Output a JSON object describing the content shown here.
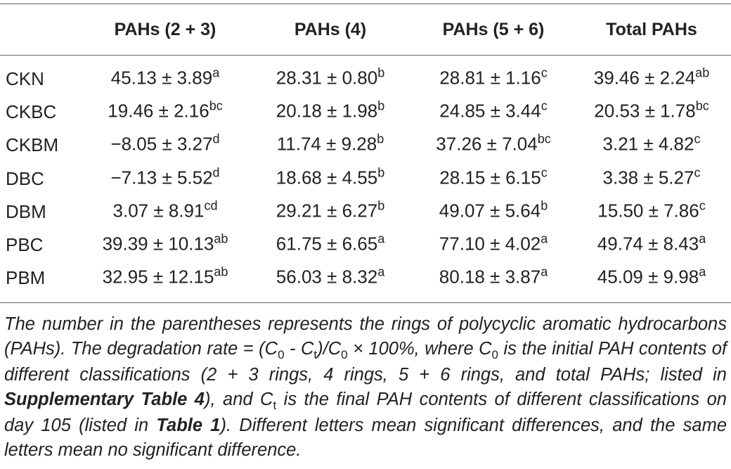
{
  "table": {
    "header": [
      "PAHs (2 + 3)",
      "PAHs (4)",
      "PAHs (5 + 6)",
      "Total PAHs"
    ],
    "rows": [
      {
        "label": "CKN",
        "cells": [
          {
            "value": "45.13 ± 3.89",
            "sup": "a"
          },
          {
            "value": "28.31 ± 0.80",
            "sup": "b"
          },
          {
            "value": "28.81 ± 1.16",
            "sup": "c"
          },
          {
            "value": "39.46 ± 2.24",
            "sup": "ab"
          }
        ]
      },
      {
        "label": "CKBC",
        "cells": [
          {
            "value": "19.46 ± 2.16",
            "sup": "bc"
          },
          {
            "value": "20.18 ± 1.98",
            "sup": "b"
          },
          {
            "value": "24.85 ± 3.44",
            "sup": "c"
          },
          {
            "value": "20.53 ± 1.78",
            "sup": "bc"
          }
        ]
      },
      {
        "label": "CKBM",
        "cells": [
          {
            "value": "−8.05 ± 3.27",
            "sup": "d"
          },
          {
            "value": "11.74 ± 9.28",
            "sup": "b"
          },
          {
            "value": "37.26 ± 7.04",
            "sup": "bc"
          },
          {
            "value": "3.21 ± 4.82",
            "sup": "c"
          }
        ]
      },
      {
        "label": "DBC",
        "cells": [
          {
            "value": "−7.13 ± 5.52",
            "sup": "d"
          },
          {
            "value": "18.68 ± 4.55",
            "sup": "b"
          },
          {
            "value": "28.15 ± 6.15",
            "sup": "c"
          },
          {
            "value": "3.38 ± 5.27",
            "sup": "c"
          }
        ]
      },
      {
        "label": "DBM",
        "cells": [
          {
            "value": "3.07 ± 8.91",
            "sup": "cd"
          },
          {
            "value": "29.21 ± 6.27",
            "sup": "b"
          },
          {
            "value": "49.07 ± 5.64",
            "sup": "b"
          },
          {
            "value": "15.50 ± 7.86",
            "sup": "c"
          }
        ]
      },
      {
        "label": "PBC",
        "cells": [
          {
            "value": "39.39 ± 10.13",
            "sup": "ab"
          },
          {
            "value": "61.75 ± 6.65",
            "sup": "a"
          },
          {
            "value": "77.10 ± 4.02",
            "sup": "a"
          },
          {
            "value": "49.74 ± 8.43",
            "sup": "a"
          }
        ]
      },
      {
        "label": "PBM",
        "cells": [
          {
            "value": "32.95 ± 12.15",
            "sup": "ab"
          },
          {
            "value": "56.03 ± 8.32",
            "sup": "a"
          },
          {
            "value": "80.18 ± 3.87",
            "sup": "a"
          },
          {
            "value": "45.09 ± 9.98",
            "sup": "a"
          }
        ]
      }
    ],
    "footnote": [
      {
        "text": "The number in the parentheses represents the rings of polycyclic aromatic hydrocarbons (PAHs). The degradation rate = (C"
      },
      {
        "text": "0",
        "style": "sub"
      },
      {
        "text": " - C"
      },
      {
        "text": "t",
        "style": "sub"
      },
      {
        "text": ")/C"
      },
      {
        "text": "0",
        "style": "sub"
      },
      {
        "text": " × 100%, where C"
      },
      {
        "text": "0",
        "style": "sub"
      },
      {
        "text": " is the initial PAH contents of different classifications (2 + 3 rings, 4 rings, 5 + 6 rings, and total PAHs; listed in "
      },
      {
        "text": "Supplementary Table 4",
        "style": "bold"
      },
      {
        "text": "), and C"
      },
      {
        "text": "t",
        "style": "sub"
      },
      {
        "text": " is the final PAH contents of different classifications on day 105 (listed in "
      },
      {
        "text": "Table 1",
        "style": "bold"
      },
      {
        "text": "). Different letters mean significant differences, and the same letters mean no significant difference."
      }
    ]
  }
}
